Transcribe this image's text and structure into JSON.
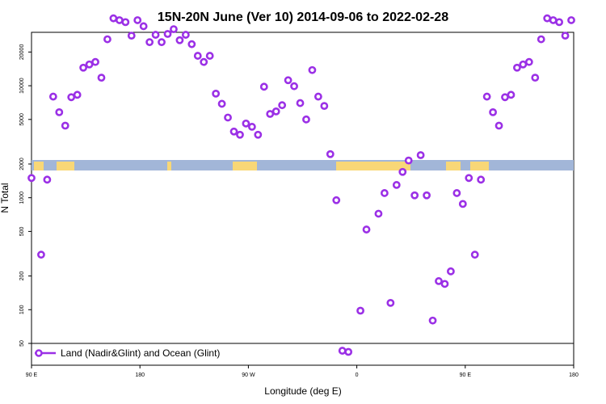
{
  "chart_data": {
    "type": "scatter",
    "title": "15N-20N June (Ver 10)   2014-09-06 to 2022-02-28",
    "xlabel": "Longitude (deg E)",
    "ylabel": "N Total",
    "x_ticks": [
      {
        "value": 90,
        "label": "90 E"
      },
      {
        "value": 180,
        "label": "180"
      },
      {
        "value": 270,
        "label": "90 W"
      },
      {
        "value": 360,
        "label": "0"
      },
      {
        "value": 450,
        "label": "90 E"
      },
      {
        "value": 540,
        "label": "180"
      }
    ],
    "y_ticks": [
      50,
      100,
      200,
      500,
      1000,
      2000,
      5000,
      10000,
      20000
    ],
    "xlim": [
      90,
      540
    ],
    "ylim": [
      40,
      50000
    ],
    "yscale": "log",
    "legend": {
      "position": "bottom-left",
      "entries": [
        {
          "label": "Land (Nadir&Glint) and Ocean (Glint)",
          "color": "#9b30e6"
        }
      ]
    },
    "series": [
      {
        "name": "Land (Nadir&Glint) and Ocean (Glint)",
        "color": "#9b30e6",
        "points": [
          [
            90,
            1500
          ],
          [
            98,
            310
          ],
          [
            103,
            1450
          ],
          [
            108,
            8000
          ],
          [
            113,
            5800
          ],
          [
            118,
            4400
          ],
          [
            123,
            7900
          ],
          [
            128,
            8300
          ],
          [
            133,
            14500
          ],
          [
            138,
            15500
          ],
          [
            143,
            16300
          ],
          [
            148,
            11800
          ],
          [
            153,
            26000
          ],
          [
            158,
            40000
          ],
          [
            163,
            38500
          ],
          [
            168,
            37000
          ],
          [
            173,
            28000
          ],
          [
            178,
            38500
          ],
          [
            183,
            34000
          ],
          [
            188,
            24500
          ],
          [
            193,
            28500
          ],
          [
            198,
            24500
          ],
          [
            203,
            29000
          ],
          [
            208,
            32000
          ],
          [
            213,
            25500
          ],
          [
            218,
            28500
          ],
          [
            223,
            23500
          ],
          [
            228,
            18500
          ],
          [
            233,
            16300
          ],
          [
            238,
            18500
          ],
          [
            243,
            8500
          ],
          [
            248,
            6900
          ],
          [
            253,
            5200
          ],
          [
            258,
            3900
          ],
          [
            263,
            3650
          ],
          [
            268,
            4600
          ],
          [
            273,
            4300
          ],
          [
            278,
            3650
          ],
          [
            283,
            9800
          ],
          [
            288,
            5600
          ],
          [
            293,
            5900
          ],
          [
            298,
            6700
          ],
          [
            303,
            11200
          ],
          [
            308,
            9900
          ],
          [
            313,
            7000
          ],
          [
            318,
            5000
          ],
          [
            323,
            13800
          ],
          [
            328,
            8000
          ],
          [
            333,
            6600
          ],
          [
            338,
            2450
          ],
          [
            343,
            950
          ],
          [
            348,
            43
          ],
          [
            353,
            42
          ],
          [
            363,
            98
          ],
          [
            368,
            520
          ],
          [
            378,
            720
          ],
          [
            383,
            1100
          ],
          [
            388,
            115
          ],
          [
            393,
            1300
          ],
          [
            398,
            1700
          ],
          [
            403,
            2150
          ],
          [
            408,
            1050
          ],
          [
            413,
            2400
          ],
          [
            418,
            1050
          ],
          [
            423,
            80
          ],
          [
            428,
            180
          ],
          [
            433,
            170
          ],
          [
            438,
            220
          ],
          [
            443,
            1100
          ],
          [
            448,
            880
          ],
          [
            453,
            1500
          ],
          [
            458,
            310
          ],
          [
            463,
            1450
          ],
          [
            468,
            8000
          ],
          [
            473,
            5800
          ],
          [
            478,
            4400
          ],
          [
            483,
            7900
          ],
          [
            488,
            8300
          ],
          [
            493,
            14500
          ],
          [
            498,
            15500
          ],
          [
            503,
            16300
          ],
          [
            508,
            11800
          ],
          [
            513,
            26000
          ],
          [
            518,
            40000
          ],
          [
            523,
            38500
          ],
          [
            528,
            37000
          ],
          [
            533,
            28000
          ],
          [
            538,
            38500
          ]
        ]
      }
    ]
  }
}
